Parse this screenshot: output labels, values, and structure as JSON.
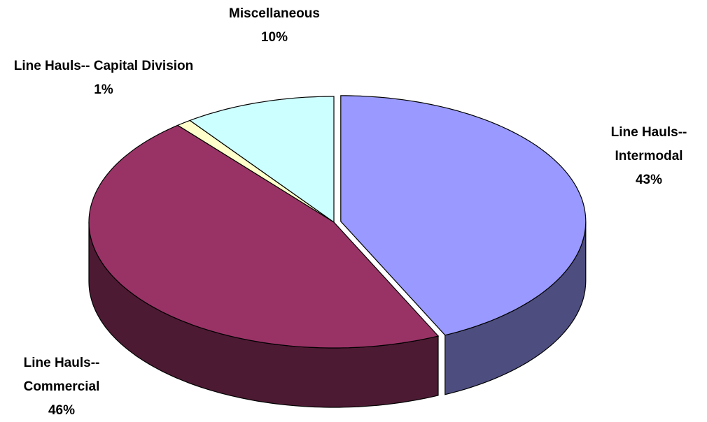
{
  "chart_data": {
    "type": "pie",
    "categories": [
      "Line Hauls-- Intermodal",
      "Line Hauls-- Commercial",
      "Line Hauls-- Capital Division",
      "Miscellaneous"
    ],
    "values": [
      43,
      46,
      1,
      10
    ],
    "value_labels": [
      "43%",
      "46%",
      "1%",
      "10%"
    ],
    "colors": [
      "#9999ff",
      "#993366",
      "#ffffcc",
      "#ccffff"
    ]
  }
}
